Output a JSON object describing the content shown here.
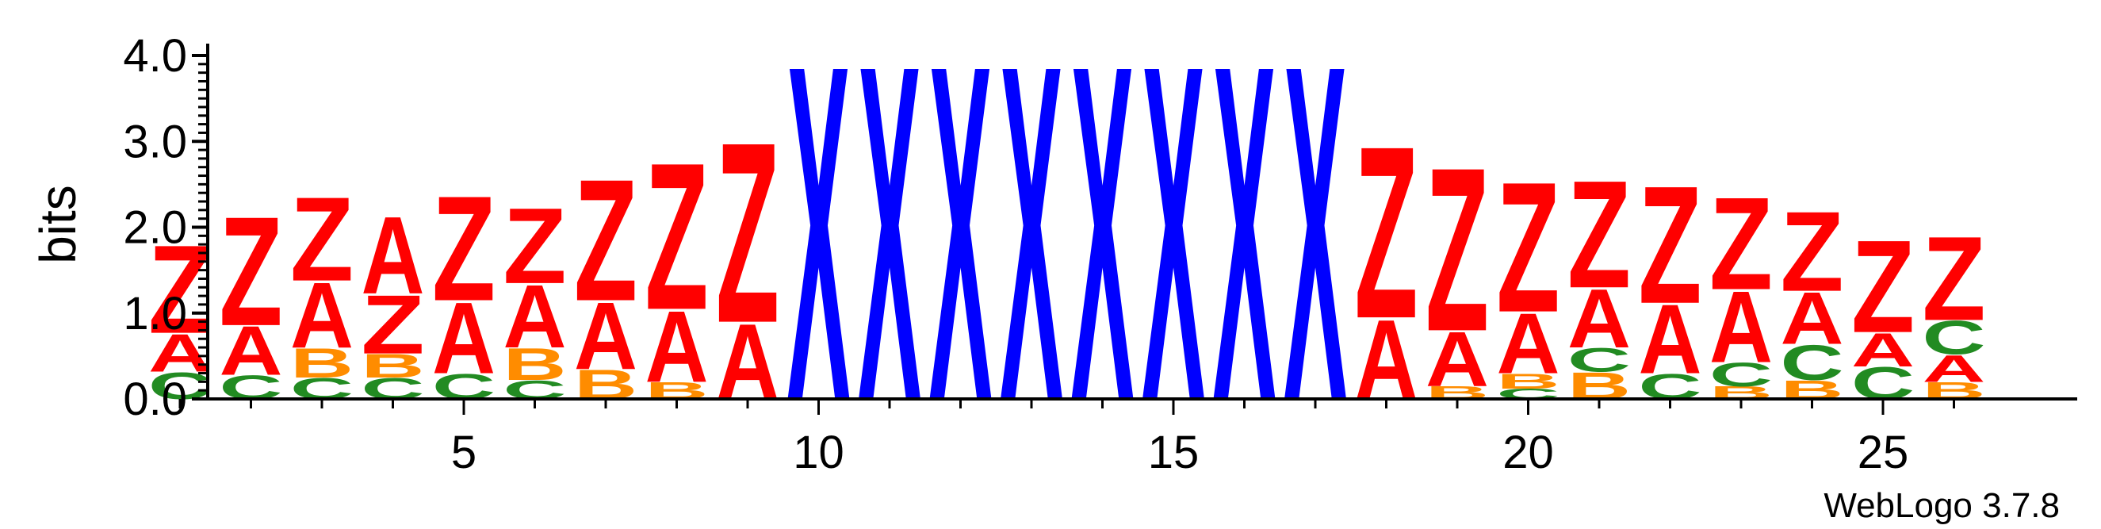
{
  "chart_data": {
    "type": "sequence-logo",
    "ylabel": "bits",
    "ylim": [
      0,
      4.0
    ],
    "y_ticks": [
      "0.0",
      "1.0",
      "2.0",
      "3.0",
      "4.0"
    ],
    "y_tick_values": [
      0,
      1,
      2,
      3,
      4
    ],
    "x_ticks": [
      "5",
      "10",
      "15",
      "20",
      "25"
    ],
    "x_tick_values": [
      5,
      10,
      15,
      20,
      25
    ],
    "positions": [
      {
        "pos": 1,
        "stack": [
          [
            "C",
            0.32
          ],
          [
            "A",
            0.45
          ],
          [
            "Z",
            1.05
          ]
        ]
      },
      {
        "pos": 2,
        "stack": [
          [
            "C",
            0.28
          ],
          [
            "A",
            0.58
          ],
          [
            "Z",
            1.3
          ]
        ]
      },
      {
        "pos": 3,
        "stack": [
          [
            "C",
            0.25
          ],
          [
            "B",
            0.35
          ],
          [
            "A",
            0.78
          ],
          [
            "Z",
            1.0
          ]
        ]
      },
      {
        "pos": 4,
        "stack": [
          [
            "C",
            0.25
          ],
          [
            "B",
            0.28
          ],
          [
            "Z",
            0.7
          ],
          [
            "A",
            0.92
          ]
        ]
      },
      {
        "pos": 5,
        "stack": [
          [
            "C",
            0.3
          ],
          [
            "A",
            0.85
          ],
          [
            "Z",
            1.25
          ]
        ]
      },
      {
        "pos": 6,
        "stack": [
          [
            "C",
            0.22
          ],
          [
            "B",
            0.38
          ],
          [
            "A",
            0.75
          ],
          [
            "Z",
            0.9
          ]
        ]
      },
      {
        "pos": 7,
        "stack": [
          [
            "B",
            0.35
          ],
          [
            "A",
            0.8
          ],
          [
            "Z",
            1.45
          ]
        ]
      },
      {
        "pos": 8,
        "stack": [
          [
            "B",
            0.2
          ],
          [
            "A",
            0.85
          ],
          [
            "Z",
            1.75
          ]
        ]
      },
      {
        "pos": 9,
        "stack": [
          [
            "A",
            0.9
          ],
          [
            "Z",
            2.15
          ]
        ]
      },
      {
        "pos": 10,
        "stack": [
          [
            "X",
            4.0
          ]
        ]
      },
      {
        "pos": 11,
        "stack": [
          [
            "X",
            4.0
          ]
        ]
      },
      {
        "pos": 12,
        "stack": [
          [
            "X",
            4.0
          ]
        ]
      },
      {
        "pos": 13,
        "stack": [
          [
            "X",
            4.0
          ]
        ]
      },
      {
        "pos": 14,
        "stack": [
          [
            "X",
            4.0
          ]
        ]
      },
      {
        "pos": 15,
        "stack": [
          [
            "X",
            4.0
          ]
        ]
      },
      {
        "pos": 16,
        "stack": [
          [
            "X",
            4.0
          ]
        ]
      },
      {
        "pos": 17,
        "stack": [
          [
            "X",
            4.0
          ]
        ]
      },
      {
        "pos": 18,
        "stack": [
          [
            "A",
            0.95
          ],
          [
            "Z",
            2.05
          ]
        ]
      },
      {
        "pos": 19,
        "stack": [
          [
            "B",
            0.15
          ],
          [
            "A",
            0.65
          ],
          [
            "Z",
            1.95
          ]
        ]
      },
      {
        "pos": 20,
        "stack": [
          [
            "C",
            0.12
          ],
          [
            "B",
            0.18
          ],
          [
            "A",
            0.72
          ],
          [
            "Z",
            1.55
          ]
        ]
      },
      {
        "pos": 21,
        "stack": [
          [
            "B",
            0.32
          ],
          [
            "C",
            0.28
          ],
          [
            "A",
            0.7
          ],
          [
            "Z",
            1.28
          ]
        ]
      },
      {
        "pos": 22,
        "stack": [
          [
            "C",
            0.3
          ],
          [
            "A",
            0.82
          ],
          [
            "Z",
            1.4
          ]
        ]
      },
      {
        "pos": 23,
        "stack": [
          [
            "B",
            0.15
          ],
          [
            "C",
            0.28
          ],
          [
            "A",
            0.85
          ],
          [
            "Z",
            1.1
          ]
        ]
      },
      {
        "pos": 24,
        "stack": [
          [
            "B",
            0.22
          ],
          [
            "C",
            0.42
          ],
          [
            "A",
            0.62
          ],
          [
            "Z",
            0.95
          ]
        ]
      },
      {
        "pos": 25,
        "stack": [
          [
            "C",
            0.38
          ],
          [
            "A",
            0.4
          ],
          [
            "Z",
            1.1
          ]
        ]
      },
      {
        "pos": 26,
        "stack": [
          [
            "B",
            0.2
          ],
          [
            "A",
            0.32
          ],
          [
            "C",
            0.4
          ],
          [
            "Z",
            1.0
          ]
        ]
      }
    ]
  },
  "colors": {
    "A": "#ff0000",
    "Z": "#ff0000",
    "B": "#ff8c00",
    "C": "#228b22",
    "X": "#0000ff",
    "axis": "#000000"
  },
  "credit": "WebLogo 3.7.8"
}
